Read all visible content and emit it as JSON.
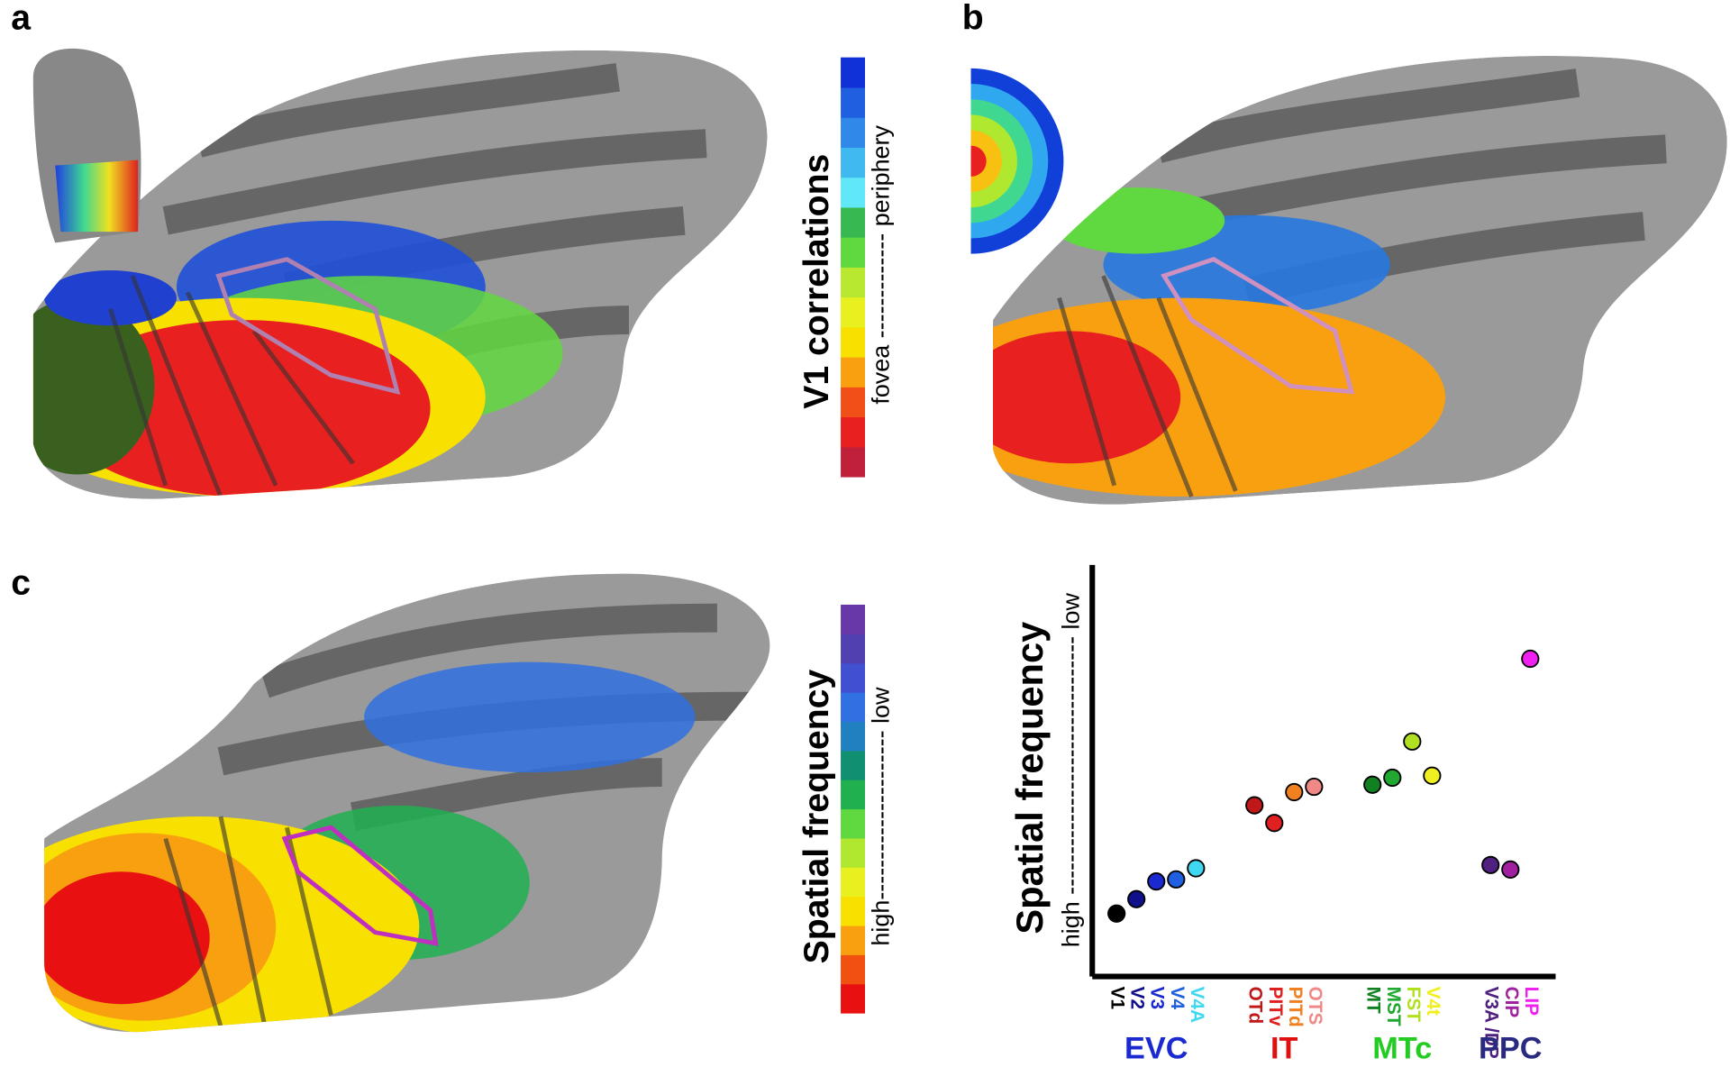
{
  "panel_labels": [
    "a",
    "b",
    "c"
  ],
  "colorbar_a": {
    "title": "V1 correlations",
    "label": "fovea ------------- periphery",
    "colors": [
      "#c0203a",
      "#e82020",
      "#f05018",
      "#f8a010",
      "#f8e000",
      "#e8f020",
      "#b8e830",
      "#60d840",
      "#38b850",
      "#60e8f8",
      "#40b8f0",
      "#3088e8",
      "#2060e0",
      "#1030d8"
    ]
  },
  "colorbar_c": {
    "title": "Spatial frequency",
    "label": "high--------------------- low",
    "colors": [
      "#e81010",
      "#f05010",
      "#f8a010",
      "#f8e000",
      "#e8f020",
      "#b0e830",
      "#60d840",
      "#20b050",
      "#109070",
      "#2080c0",
      "#3070e0",
      "#4050d0",
      "#5040b0",
      "#6838a8"
    ]
  },
  "chart_data": {
    "type": "scatter",
    "y_label": "Spatial frequency",
    "y_range_label": "high -------------------------------- low",
    "ylim": [
      0,
      100
    ],
    "categories": [
      "V1",
      "V2",
      "V3",
      "V4",
      "V4A",
      "OTd",
      "PITv",
      "PITd",
      "OTS",
      "MT",
      "MST",
      "FST",
      "V4t",
      "V3A /DP",
      "CIP",
      "LIP"
    ],
    "values": [
      15.3,
      18.8,
      23.1,
      23.6,
      26.3,
      41.6,
      37.3,
      44.8,
      46.1,
      46.6,
      48.3,
      57.1,
      48.8,
      27.1,
      26.0,
      77.2
    ],
    "colors": [
      "#000000",
      "#10108a",
      "#1a2ad0",
      "#2060e0",
      "#40d8f0",
      "#c01818",
      "#e02020",
      "#f08020",
      "#f08888",
      "#108020",
      "#20a830",
      "#b0e020",
      "#f0f020",
      "#502080",
      "#a020a0",
      "#f020f0"
    ],
    "groups": [
      {
        "name": "EVC",
        "color": "#1a2ad0",
        "start": 0,
        "end": 4
      },
      {
        "name": "IT",
        "color": "#e01010",
        "start": 5,
        "end": 8
      },
      {
        "name": "MTc",
        "color": "#22cc22",
        "start": 9,
        "end": 12
      },
      {
        "name": "PPC",
        "color": "#2a2a80",
        "start": 13,
        "end": 15
      }
    ]
  }
}
